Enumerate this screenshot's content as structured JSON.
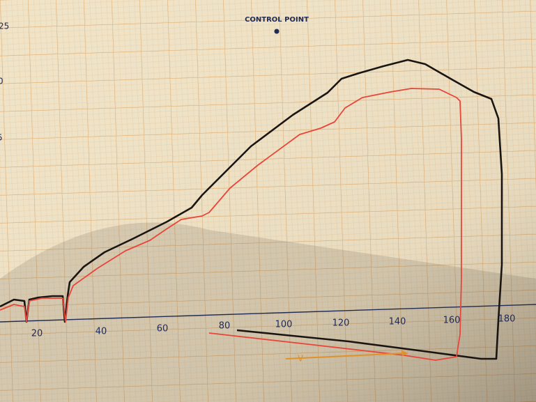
{
  "control_point": {
    "label": "CONTROL POINT"
  },
  "y_axis_labels": [
    "25",
    "0",
    "5"
  ],
  "x_axis_labels": [
    "20",
    "40",
    "60",
    "80",
    "100",
    "120",
    "140",
    "160",
    "180"
  ],
  "arrow_label": "V"
}
